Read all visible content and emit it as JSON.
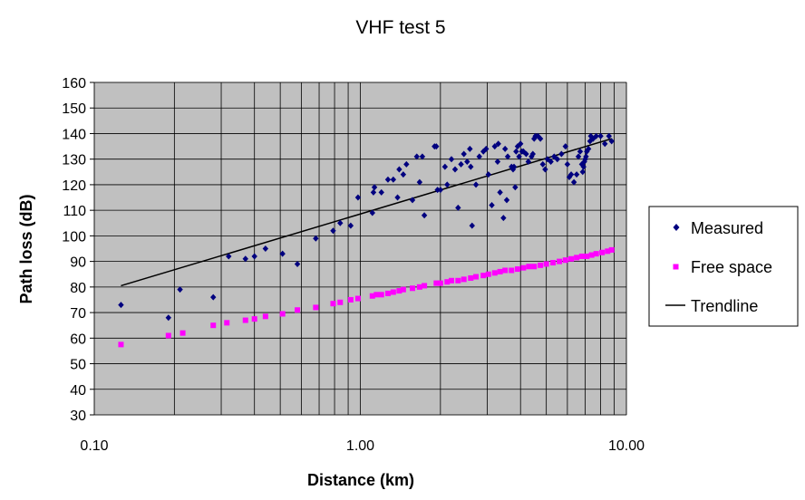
{
  "chart_data": {
    "type": "scatter",
    "title": "VHF test 5",
    "xlabel": "Distance (km)",
    "ylabel": "Path loss (dB)",
    "xscale": "log",
    "xlim": [
      0.1,
      10
    ],
    "ylim": [
      30,
      160
    ],
    "y_ticks": [
      "30",
      "40",
      "50",
      "60",
      "70",
      "80",
      "90",
      "100",
      "110",
      "120",
      "130",
      "140",
      "150",
      "160"
    ],
    "x_tick_labels": [
      "0.10",
      "1.00",
      "10.00"
    ],
    "x_ticks": [
      0.1,
      1,
      10
    ],
    "y_tick_values": [
      30,
      40,
      50,
      60,
      70,
      80,
      90,
      100,
      110,
      120,
      130,
      140,
      150,
      160
    ],
    "grid": true,
    "plot_background": "#c0c0c0",
    "legend_position": "right",
    "series": [
      {
        "name": "Measured",
        "color": "#00007f",
        "marker": "diamond",
        "points": [
          [
            0.126,
            73
          ],
          [
            0.19,
            68
          ],
          [
            0.21,
            79
          ],
          [
            0.28,
            76
          ],
          [
            0.32,
            92
          ],
          [
            0.37,
            91
          ],
          [
            0.4,
            92
          ],
          [
            0.44,
            95
          ],
          [
            0.51,
            93
          ],
          [
            0.58,
            89
          ],
          [
            0.68,
            99
          ],
          [
            0.79,
            102
          ],
          [
            0.84,
            105
          ],
          [
            0.92,
            104
          ],
          [
            0.98,
            115
          ],
          [
            1.11,
            109
          ],
          [
            1.12,
            117
          ],
          [
            1.13,
            119
          ],
          [
            1.2,
            117
          ],
          [
            1.27,
            122
          ],
          [
            1.33,
            122
          ],
          [
            1.38,
            115
          ],
          [
            1.4,
            126
          ],
          [
            1.45,
            124
          ],
          [
            1.49,
            128
          ],
          [
            1.57,
            114
          ],
          [
            1.63,
            131
          ],
          [
            1.67,
            121
          ],
          [
            1.71,
            131
          ],
          [
            1.74,
            108
          ],
          [
            1.9,
            135
          ],
          [
            1.93,
            135
          ],
          [
            1.95,
            118
          ],
          [
            2.0,
            118
          ],
          [
            2.08,
            127
          ],
          [
            2.12,
            120
          ],
          [
            2.2,
            130
          ],
          [
            2.27,
            126
          ],
          [
            2.33,
            111
          ],
          [
            2.39,
            128
          ],
          [
            2.45,
            132
          ],
          [
            2.52,
            129
          ],
          [
            2.58,
            134
          ],
          [
            2.6,
            127
          ],
          [
            2.63,
            104
          ],
          [
            2.72,
            120
          ],
          [
            2.8,
            131
          ],
          [
            2.9,
            133
          ],
          [
            2.97,
            134
          ],
          [
            3.03,
            124
          ],
          [
            3.12,
            112
          ],
          [
            3.2,
            135
          ],
          [
            3.28,
            129
          ],
          [
            3.3,
            136
          ],
          [
            3.35,
            117
          ],
          [
            3.45,
            107
          ],
          [
            3.5,
            134
          ],
          [
            3.55,
            114
          ],
          [
            3.58,
            131
          ],
          [
            3.7,
            127
          ],
          [
            3.75,
            126
          ],
          [
            3.78,
            127
          ],
          [
            3.82,
            119
          ],
          [
            3.85,
            133
          ],
          [
            3.9,
            135
          ],
          [
            3.95,
            131
          ],
          [
            4.0,
            136
          ],
          [
            4.05,
            133
          ],
          [
            4.1,
            133
          ],
          [
            4.2,
            132
          ],
          [
            4.28,
            129
          ],
          [
            4.4,
            131
          ],
          [
            4.45,
            132
          ],
          [
            4.5,
            138
          ],
          [
            4.55,
            139
          ],
          [
            4.65,
            139
          ],
          [
            4.75,
            138
          ],
          [
            4.85,
            128
          ],
          [
            4.95,
            126
          ],
          [
            5.05,
            130
          ],
          [
            5.2,
            129
          ],
          [
            5.35,
            131
          ],
          [
            5.5,
            130
          ],
          [
            5.7,
            132
          ],
          [
            5.9,
            135
          ],
          [
            6.0,
            128
          ],
          [
            6.1,
            123
          ],
          [
            6.2,
            124
          ],
          [
            6.35,
            121
          ],
          [
            6.5,
            124
          ],
          [
            6.6,
            131
          ],
          [
            6.7,
            133
          ],
          [
            6.8,
            128
          ],
          [
            6.85,
            125
          ],
          [
            6.9,
            127
          ],
          [
            6.95,
            129
          ],
          [
            7.0,
            130
          ],
          [
            7.05,
            131
          ],
          [
            7.1,
            133
          ],
          [
            7.2,
            134
          ],
          [
            7.3,
            137
          ],
          [
            7.35,
            139
          ],
          [
            7.5,
            138
          ],
          [
            7.7,
            139
          ],
          [
            8.0,
            139
          ],
          [
            8.3,
            136
          ],
          [
            8.6,
            139
          ],
          [
            8.8,
            137
          ]
        ]
      },
      {
        "name": "Free space",
        "color": "#ff00ff",
        "marker": "square",
        "points": [
          [
            0.126,
            57.5
          ],
          [
            0.19,
            61
          ],
          [
            0.215,
            62
          ],
          [
            0.28,
            65
          ],
          [
            0.315,
            66
          ],
          [
            0.37,
            67
          ],
          [
            0.4,
            67.5
          ],
          [
            0.44,
            68.5
          ],
          [
            0.51,
            69.5
          ],
          [
            0.58,
            71
          ],
          [
            0.68,
            72
          ],
          [
            0.79,
            73.5
          ],
          [
            0.84,
            74
          ],
          [
            0.92,
            75
          ],
          [
            0.98,
            75.5
          ],
          [
            1.11,
            76.5
          ],
          [
            1.15,
            77
          ],
          [
            1.2,
            77
          ],
          [
            1.27,
            77.5
          ],
          [
            1.33,
            78
          ],
          [
            1.4,
            78.5
          ],
          [
            1.45,
            79
          ],
          [
            1.57,
            79.5
          ],
          [
            1.67,
            80
          ],
          [
            1.74,
            80.5
          ],
          [
            1.93,
            81.5
          ],
          [
            2.0,
            81.5
          ],
          [
            2.12,
            82
          ],
          [
            2.2,
            82.5
          ],
          [
            2.33,
            82.5
          ],
          [
            2.45,
            83
          ],
          [
            2.6,
            83.5
          ],
          [
            2.72,
            84
          ],
          [
            2.9,
            84.5
          ],
          [
            3.03,
            85
          ],
          [
            3.2,
            85.5
          ],
          [
            3.35,
            86
          ],
          [
            3.5,
            86.5
          ],
          [
            3.7,
            86.5
          ],
          [
            3.9,
            87
          ],
          [
            4.1,
            87.5
          ],
          [
            4.3,
            88
          ],
          [
            4.5,
            88
          ],
          [
            4.75,
            88.5
          ],
          [
            5.0,
            89
          ],
          [
            5.3,
            89.5
          ],
          [
            5.6,
            90
          ],
          [
            5.9,
            90.5
          ],
          [
            6.2,
            91
          ],
          [
            6.5,
            91.5
          ],
          [
            6.8,
            92
          ],
          [
            7.1,
            92
          ],
          [
            7.4,
            92.5
          ],
          [
            7.7,
            93
          ],
          [
            8.1,
            93.5
          ],
          [
            8.5,
            94
          ],
          [
            8.8,
            94.5
          ]
        ]
      },
      {
        "name": "Trendline",
        "color": "#000000",
        "type": "line",
        "points": [
          [
            0.126,
            80.5
          ],
          [
            8.8,
            138
          ]
        ]
      }
    ]
  }
}
